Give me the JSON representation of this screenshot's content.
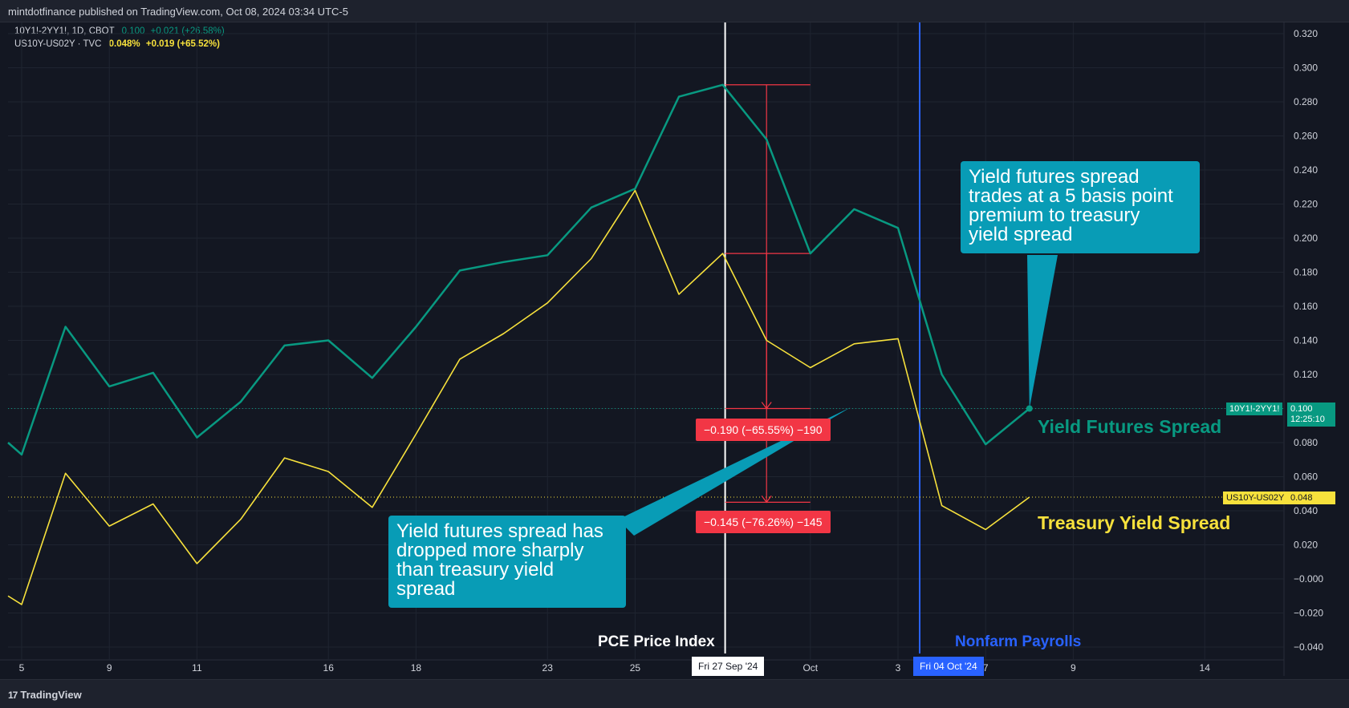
{
  "header": {
    "publisher": "mintdotfinance published on TradingView.com, Oct 08, 2024 03:34 UTC-5"
  },
  "legend": [
    {
      "symbol": "10Y1!-2YY1!, 1D, CBOT",
      "value": "0.100",
      "change": "+0.021 (+26.58%)",
      "color": "#089981"
    },
    {
      "symbol": "US10Y-US02Y · TVC",
      "value": "0.048%",
      "change": "+0.019 (+65.52%)",
      "color": "#f7e13c"
    }
  ],
  "chart_data": {
    "type": "line",
    "x": [
      "Sep 05",
      "Sep 06",
      "Sep 07",
      "Sep 09",
      "Sep 10",
      "Sep 11",
      "Sep 12",
      "Sep 13",
      "Sep 16",
      "Sep 17",
      "Sep 18",
      "Sep 19",
      "Sep 20",
      "Sep 23",
      "Sep 24",
      "Sep 25",
      "Sep 26",
      "Sep 27",
      "Sep 30",
      "Oct 01",
      "Oct 02",
      "Oct 03",
      "Oct 04",
      "Oct 07",
      "Oct 08"
    ],
    "series": [
      {
        "name": "10Y1!-2YY1!",
        "color": "#089981",
        "values": [
          0.073,
          0.148,
          0.113,
          0.121,
          0.083,
          0.104,
          0.137,
          0.14,
          0.118,
          0.148,
          0.181,
          0.186,
          0.19,
          0.218,
          0.229,
          0.283,
          0.29,
          0.258,
          0.191,
          0.217,
          0.206,
          0.12,
          0.079,
          0.1,
          null
        ]
      },
      {
        "name": "US10Y-US02Y",
        "color": "#f7e13c",
        "values": [
          -0.015,
          0.062,
          0.031,
          0.044,
          0.009,
          0.035,
          0.071,
          0.063,
          0.042,
          0.085,
          0.129,
          0.144,
          0.162,
          0.188,
          0.228,
          0.167,
          0.191,
          0.14,
          0.124,
          0.138,
          0.141,
          0.043,
          0.029,
          0.048,
          null
        ]
      }
    ],
    "x_ticks": [
      {
        "label": "5",
        "pos": 0
      },
      {
        "label": "9",
        "pos": 2
      },
      {
        "label": "11",
        "pos": 4
      },
      {
        "label": "16",
        "pos": 7
      },
      {
        "label": "18",
        "pos": 9
      },
      {
        "label": "23",
        "pos": 12
      },
      {
        "label": "25",
        "pos": 14
      },
      {
        "label": "Oct",
        "pos": 18
      },
      {
        "label": "3",
        "pos": 20
      },
      {
        "label": "7",
        "pos": 22
      },
      {
        "label": "9",
        "pos": 24
      },
      {
        "label": "14",
        "pos": 27
      }
    ],
    "y_ticks": [
      "0.320",
      "0.300",
      "0.280",
      "0.260",
      "0.240",
      "0.220",
      "0.200",
      "0.180",
      "0.160",
      "0.140",
      "0.120",
      "0.100",
      "0.080",
      "0.060",
      "0.040",
      "0.020",
      "−0.000",
      "−0.020",
      "−0.040"
    ],
    "ylim": [
      -0.047,
      0.327
    ],
    "grid": true
  },
  "price_tags": {
    "futures": {
      "symbol": "10Y1!-2YY1!",
      "value": "0.100",
      "countdown": "12:25:10"
    },
    "treasury": {
      "symbol": "US10Y-US02Y",
      "value": "0.048"
    }
  },
  "date_tags": {
    "pce": "Fri 27 Sep '24",
    "nfp": "Fri 04 Oct '24"
  },
  "events": {
    "pce": "PCE Price Index",
    "nfp": "Nonfarm Payrolls"
  },
  "measures": {
    "futures": "−0.190 (−65.55%) −190",
    "treasury": "−0.145 (−76.26%) −145"
  },
  "callouts": {
    "top": "Yield futures spread\ntrades at a 5 basis point\npremium to treasury\nyield spread",
    "bottom": "Yield futures spread has\ndropped more sharply\nthan treasury yield\nspread"
  },
  "series_labels": {
    "futures": "Yield Futures Spread",
    "treasury": "Treasury Yield Spread"
  },
  "footer": {
    "logo_mark": "17",
    "brand": "TradingView"
  }
}
